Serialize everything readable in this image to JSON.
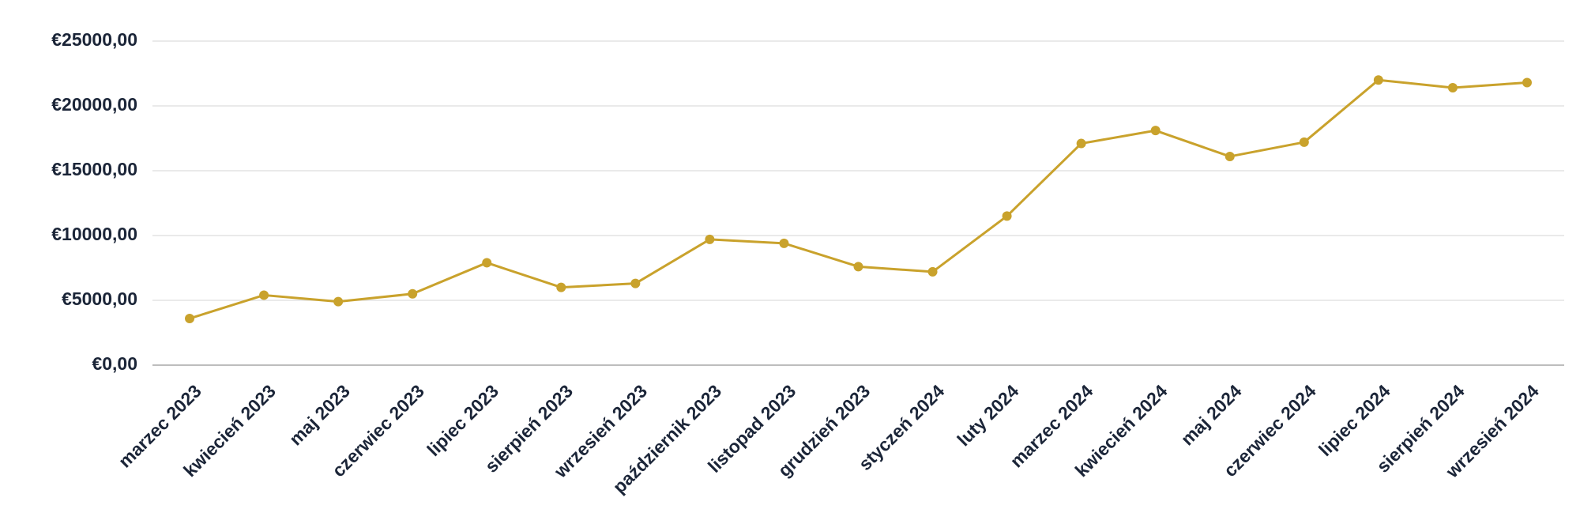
{
  "chart_data": {
    "type": "line",
    "categories": [
      "marzec 2023",
      "kwiecień 2023",
      "maj 2023",
      "czerwiec 2023",
      "lipiec 2023",
      "sierpień 2023",
      "wrzesień 2023",
      "październik 2023",
      "listopad 2023",
      "grudzień 2023",
      "styczeń 2024",
      "luty 2024",
      "marzec 2024",
      "kwiecień 2024",
      "maj 2024",
      "czerwiec 2024",
      "lipiec 2024",
      "sierpień 2024",
      "wrzesień 2024"
    ],
    "values": [
      3600,
      5400,
      4900,
      5500,
      7900,
      6000,
      6300,
      9700,
      9400,
      7600,
      7200,
      11500,
      17100,
      18100,
      16100,
      17200,
      22000,
      21400,
      21800
    ],
    "color": "#c9a22c",
    "ylim": [
      0,
      25000
    ],
    "yticks": [
      {
        "value": 0,
        "label": "€0,00"
      },
      {
        "value": 5000,
        "label": "€5000,00"
      },
      {
        "value": 10000,
        "label": "€10000,00"
      },
      {
        "value": 15000,
        "label": "€15000,00"
      },
      {
        "value": 20000,
        "label": "€20000,00"
      },
      {
        "value": 25000,
        "label": "€25000,00"
      }
    ],
    "grid": true
  }
}
